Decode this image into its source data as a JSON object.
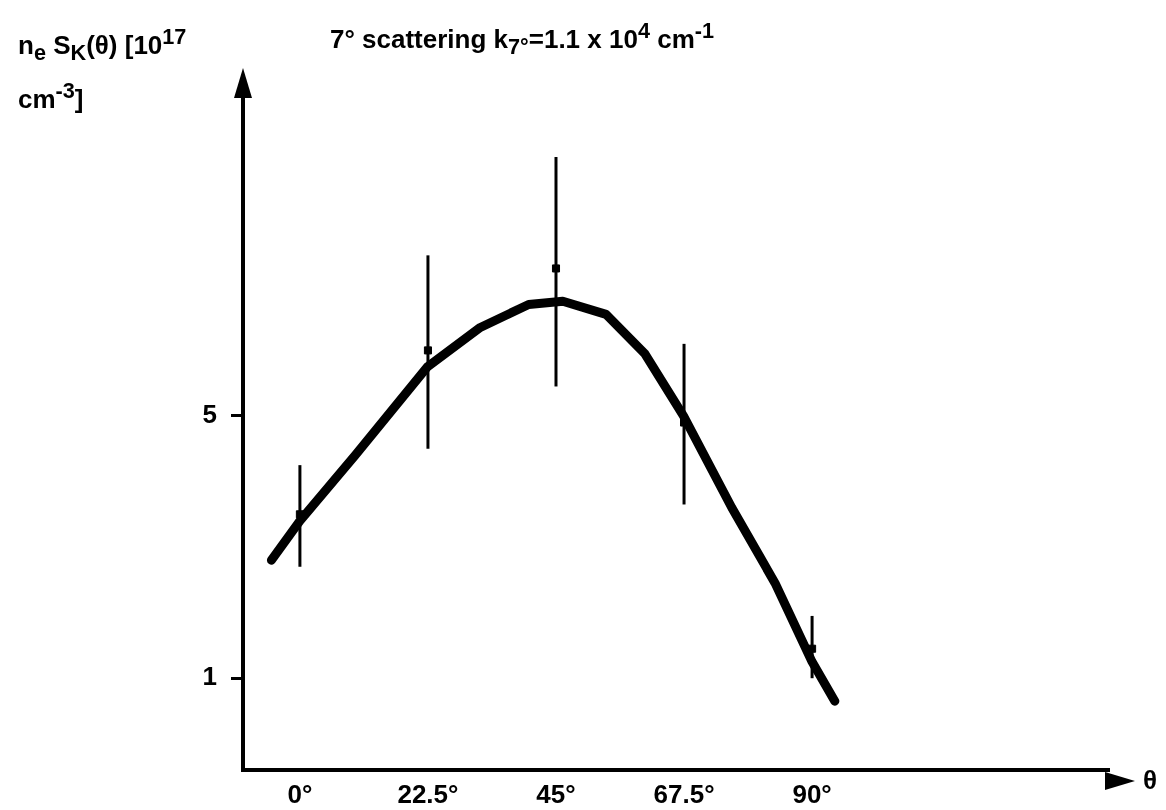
{
  "chart_data": {
    "type": "scatter",
    "title": "7° scattering   k$_{7°}$=1.1 x 10$^{4}$ cm$^{-1}$",
    "ylabel": "n$_{e}$ S$_{K}$(θ) [10$^{17}$ cm$^{-3}$]",
    "xlabel": "θ",
    "xlim": [
      -10,
      142
    ],
    "ylim": [
      -0.4,
      9.85
    ],
    "xticks": [
      {
        "value": 0,
        "label": "0°"
      },
      {
        "value": 22.5,
        "label": "22.5°"
      },
      {
        "value": 45,
        "label": "45°"
      },
      {
        "value": 67.5,
        "label": "67.5°"
      },
      {
        "value": 90,
        "label": "90°"
      }
    ],
    "yticks": [
      1,
      5
    ],
    "grid": false,
    "legend": false,
    "marker": "square",
    "series": [
      {
        "type": "scatter",
        "color": "#000000",
        "x": [
          0,
          22.5,
          45,
          67.5,
          90
        ],
        "values": [
          3.5,
          6.0,
          7.25,
          4.9,
          1.45
        ],
        "errors": [
          [
            2.7,
            4.25
          ],
          [
            4.5,
            7.45
          ],
          [
            5.45,
            8.95
          ],
          [
            3.65,
            6.1
          ],
          [
            1.0,
            1.95
          ]
        ]
      },
      {
        "type": "line",
        "marker": "none",
        "color": "#000000",
        "x": [
          -5,
          0,
          9.7,
          22.4,
          31.7,
          40.2,
          46.2,
          53.8,
          60.6,
          67.4,
          75.9,
          83.5,
          90,
          94
        ],
        "values": [
          2.8,
          3.4,
          4.4,
          5.75,
          6.35,
          6.7,
          6.75,
          6.55,
          5.95,
          5.0,
          3.6,
          2.45,
          1.25,
          0.65
        ]
      }
    ]
  }
}
